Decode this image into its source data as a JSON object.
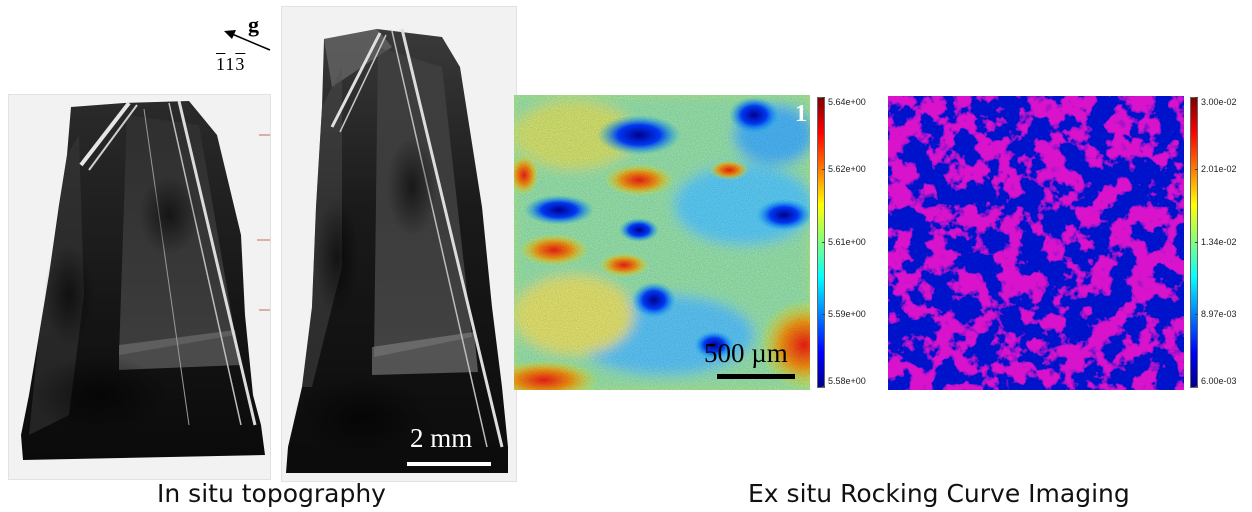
{
  "captions": {
    "left": "In situ topography",
    "right": "Ex situ Rocking Curve Imaging"
  },
  "g_vector": {
    "symbol": "g",
    "miller": {
      "h": "1",
      "k": "1",
      "l": "3",
      "h_bar": true,
      "l_bar": true
    }
  },
  "scale_bars": {
    "topography": "2 mm",
    "rci": "500 µm"
  },
  "panel_label": "1",
  "colorbars": {
    "left": {
      "ticks": [
        "5.64e+00",
        "5.62e+00",
        "5.61e+00",
        "5.59e+00",
        "5.58e+00"
      ]
    },
    "right": {
      "ticks": [
        "3.00e-02",
        "2.01e-02",
        "1.34e-02",
        "8.97e-03",
        "6.00e-03"
      ]
    }
  },
  "colors": {
    "jet_low": "#00008f",
    "jet_mid": "#7fff7f",
    "jet_high": "#7f0000"
  }
}
